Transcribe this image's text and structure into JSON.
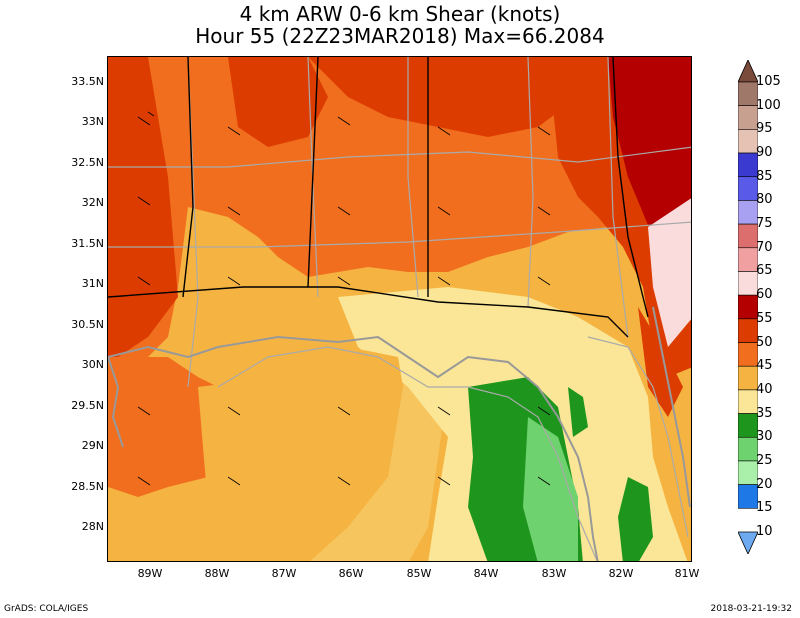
{
  "title": {
    "line1": "4 km ARW 0-6 km Shear (knots)",
    "line2": "Hour 55 (22Z23MAR2018) Max=66.2084"
  },
  "axes": {
    "y_labels": [
      "33.5N",
      "33N",
      "32.5N",
      "32N",
      "31.5N",
      "31N",
      "30.5N",
      "30N",
      "29.5N",
      "29N",
      "28.5N",
      "28N"
    ],
    "x_labels": [
      "89W",
      "88W",
      "87W",
      "86W",
      "85W",
      "84W",
      "83W",
      "82W",
      "81W"
    ]
  },
  "colorbar": {
    "labels": [
      "105",
      "100",
      "95",
      "90",
      "85",
      "80",
      "75",
      "70",
      "65",
      "60",
      "55",
      "50",
      "45",
      "40",
      "35",
      "30",
      "25",
      "20",
      "15",
      "10"
    ],
    "colors": [
      "#7a4a3a",
      "#a0786a",
      "#c8a090",
      "#e6c2b4",
      "#3a3ad0",
      "#5a5ae8",
      "#a8a0f0",
      "#dc6e6e",
      "#f0a0a0",
      "#fadcdc",
      "#b40000",
      "#dc3c00",
      "#f06e1e",
      "#f5b441",
      "#fae696",
      "#1e961e",
      "#6ed26e",
      "#aaf0aa",
      "#1e78e6",
      "#6eaaf0"
    ],
    "units": "knots"
  },
  "footer": {
    "left": "GrADS: COLA/IGES",
    "right": "2018-03-21-19:32"
  }
}
